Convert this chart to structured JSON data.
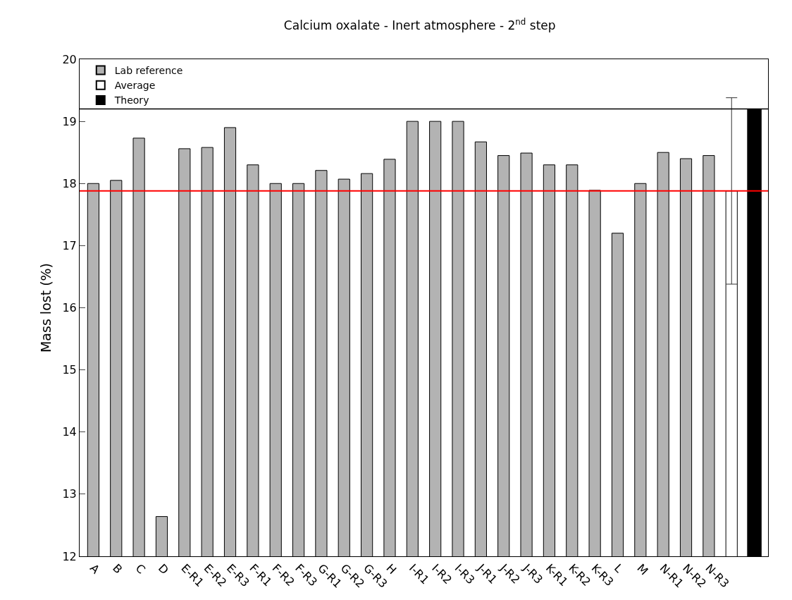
{
  "chart_data": {
    "type": "bar",
    "title": "Calcium oxalate - Inert atmosphere - 2$^{nd}$ step",
    "ylabel": "Mass lost (%)",
    "categories": [
      "A",
      "B",
      "C",
      "D",
      "E-R1",
      "E-R2",
      "E-R3",
      "F-R1",
      "F-R2",
      "F-R3",
      "G-R1",
      "G-R2",
      "G-R3",
      "H",
      "I-R1",
      "I-R2",
      "I-R3",
      "J-R1",
      "J-R2",
      "J-R3",
      "K-R1",
      "K-R2",
      "K-R3",
      "L",
      "M",
      "N-R1",
      "N-R2",
      "N-R3",
      null,
      null
    ],
    "series": [
      {
        "name": "Lab reference",
        "color": "#b3b3b3",
        "values": [
          18.0,
          18.05,
          18.73,
          12.64,
          18.56,
          18.58,
          18.9,
          18.3,
          18.0,
          18.0,
          18.21,
          18.07,
          18.16,
          18.39,
          19.0,
          19.0,
          19.0,
          18.67,
          18.45,
          18.49,
          18.3,
          18.3,
          17.89,
          17.2,
          18.0,
          18.5,
          18.4,
          18.45,
          null,
          null
        ]
      },
      {
        "name": "Average",
        "color": "#ffffff",
        "values": [
          null,
          null,
          null,
          null,
          null,
          null,
          null,
          null,
          null,
          null,
          null,
          null,
          null,
          null,
          null,
          null,
          null,
          null,
          null,
          null,
          null,
          null,
          null,
          null,
          null,
          null,
          null,
          null,
          17.88,
          null
        ],
        "errors": [
          null,
          null,
          null,
          null,
          null,
          null,
          null,
          null,
          null,
          null,
          null,
          null,
          null,
          null,
          null,
          null,
          null,
          null,
          null,
          null,
          null,
          null,
          null,
          null,
          null,
          null,
          null,
          null,
          1.5,
          null
        ]
      },
      {
        "name": "Theory",
        "color": "#000000",
        "values": [
          null,
          null,
          null,
          null,
          null,
          null,
          null,
          null,
          null,
          null,
          null,
          null,
          null,
          null,
          null,
          null,
          null,
          null,
          null,
          null,
          null,
          null,
          null,
          null,
          null,
          null,
          null,
          null,
          null,
          19.2
        ]
      }
    ],
    "ylim": [
      12,
      20
    ],
    "yticks": [
      12,
      13,
      14,
      15,
      16,
      17,
      18,
      19,
      20
    ],
    "ref_lines": [
      {
        "axis": "y",
        "value": 17.88,
        "color": "#ff0000"
      },
      {
        "axis": "y",
        "value": 19.2,
        "color": "#000000"
      }
    ],
    "legend": "top left"
  }
}
